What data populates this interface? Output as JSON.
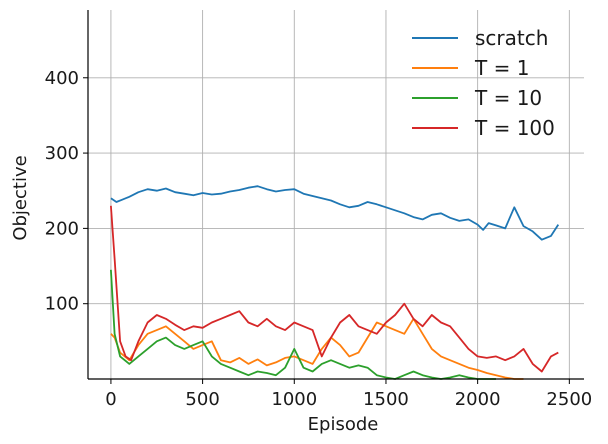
{
  "chart_data": {
    "type": "line",
    "title": "",
    "xlabel": "Episode",
    "ylabel": "Objective",
    "xlim": [
      -125,
      2580
    ],
    "ylim": [
      0,
      490
    ],
    "xticks": [
      0,
      500,
      1000,
      1500,
      2000,
      2500
    ],
    "yticks": [
      100,
      200,
      300,
      400
    ],
    "xtick_labels": [
      "0",
      "500",
      "1000",
      "1500",
      "2000",
      "2500"
    ],
    "ytick_labels": [
      "100",
      "200",
      "300",
      "400"
    ],
    "grid": true,
    "legend_position": "top-right",
    "series": [
      {
        "name": "scratch",
        "color": "#1f77b4",
        "x": [
          0,
          30,
          60,
          100,
          150,
          200,
          250,
          300,
          350,
          400,
          450,
          500,
          550,
          600,
          650,
          700,
          750,
          800,
          850,
          900,
          950,
          1000,
          1050,
          1100,
          1150,
          1200,
          1250,
          1300,
          1350,
          1400,
          1450,
          1500,
          1550,
          1600,
          1650,
          1700,
          1750,
          1800,
          1850,
          1900,
          1950,
          2000,
          2030,
          2060,
          2100,
          2150,
          2200,
          2250,
          2300,
          2350,
          2400,
          2440
        ],
        "y": [
          240,
          235,
          238,
          242,
          248,
          252,
          250,
          253,
          248,
          246,
          244,
          247,
          245,
          246,
          249,
          251,
          254,
          256,
          252,
          249,
          251,
          252,
          246,
          243,
          240,
          237,
          232,
          228,
          230,
          235,
          232,
          228,
          224,
          220,
          215,
          212,
          218,
          220,
          214,
          210,
          212,
          205,
          198,
          207,
          204,
          200,
          228,
          203,
          196,
          185,
          190,
          205
        ]
      },
      {
        "name": "T = 1",
        "color": "#ff7f0e",
        "x": [
          0,
          20,
          50,
          100,
          150,
          200,
          250,
          300,
          350,
          400,
          450,
          500,
          550,
          600,
          650,
          700,
          750,
          800,
          850,
          900,
          950,
          1000,
          1050,
          1100,
          1150,
          1200,
          1250,
          1300,
          1350,
          1400,
          1450,
          1500,
          1550,
          1600,
          1650,
          1700,
          1750,
          1800,
          1850,
          1900,
          1950,
          2000,
          2050,
          2100,
          2150,
          2200,
          2250
        ],
        "y": [
          60,
          55,
          35,
          25,
          45,
          60,
          65,
          70,
          60,
          50,
          40,
          45,
          50,
          25,
          22,
          28,
          20,
          26,
          18,
          22,
          28,
          30,
          25,
          20,
          40,
          55,
          45,
          30,
          35,
          55,
          75,
          70,
          65,
          60,
          80,
          60,
          40,
          30,
          25,
          20,
          15,
          12,
          8,
          5,
          2,
          0,
          0
        ]
      },
      {
        "name": "T = 10",
        "color": "#2ca02c",
        "x": [
          0,
          20,
          50,
          100,
          150,
          200,
          250,
          300,
          350,
          400,
          450,
          500,
          550,
          600,
          650,
          700,
          750,
          800,
          850,
          900,
          950,
          1000,
          1050,
          1100,
          1150,
          1200,
          1250,
          1300,
          1350,
          1400,
          1450,
          1500,
          1550,
          1600,
          1650,
          1700,
          1750,
          1800,
          1850,
          1900,
          1950,
          2000,
          2050,
          2100
        ],
        "y": [
          145,
          60,
          30,
          20,
          30,
          40,
          50,
          55,
          45,
          40,
          45,
          50,
          30,
          20,
          15,
          10,
          5,
          10,
          8,
          5,
          15,
          40,
          15,
          10,
          20,
          25,
          20,
          15,
          18,
          15,
          5,
          2,
          0,
          5,
          10,
          5,
          2,
          0,
          2,
          5,
          2,
          0,
          0,
          0
        ]
      },
      {
        "name": "T = 100",
        "color": "#d62728",
        "x": [
          0,
          20,
          50,
          80,
          110,
          150,
          200,
          250,
          300,
          350,
          400,
          450,
          500,
          550,
          600,
          650,
          700,
          750,
          800,
          850,
          900,
          950,
          1000,
          1050,
          1100,
          1150,
          1200,
          1250,
          1300,
          1350,
          1400,
          1450,
          1500,
          1550,
          1600,
          1650,
          1700,
          1750,
          1800,
          1850,
          1900,
          1950,
          2000,
          2050,
          2100,
          2150,
          2200,
          2250,
          2300,
          2350,
          2400,
          2440
        ],
        "y": [
          230,
          160,
          50,
          30,
          25,
          50,
          75,
          85,
          80,
          72,
          65,
          70,
          68,
          75,
          80,
          85,
          90,
          75,
          70,
          80,
          70,
          65,
          75,
          70,
          65,
          30,
          55,
          75,
          85,
          70,
          65,
          60,
          75,
          85,
          100,
          80,
          70,
          85,
          75,
          70,
          55,
          40,
          30,
          28,
          30,
          25,
          30,
          40,
          20,
          10,
          30,
          35
        ]
      }
    ]
  }
}
